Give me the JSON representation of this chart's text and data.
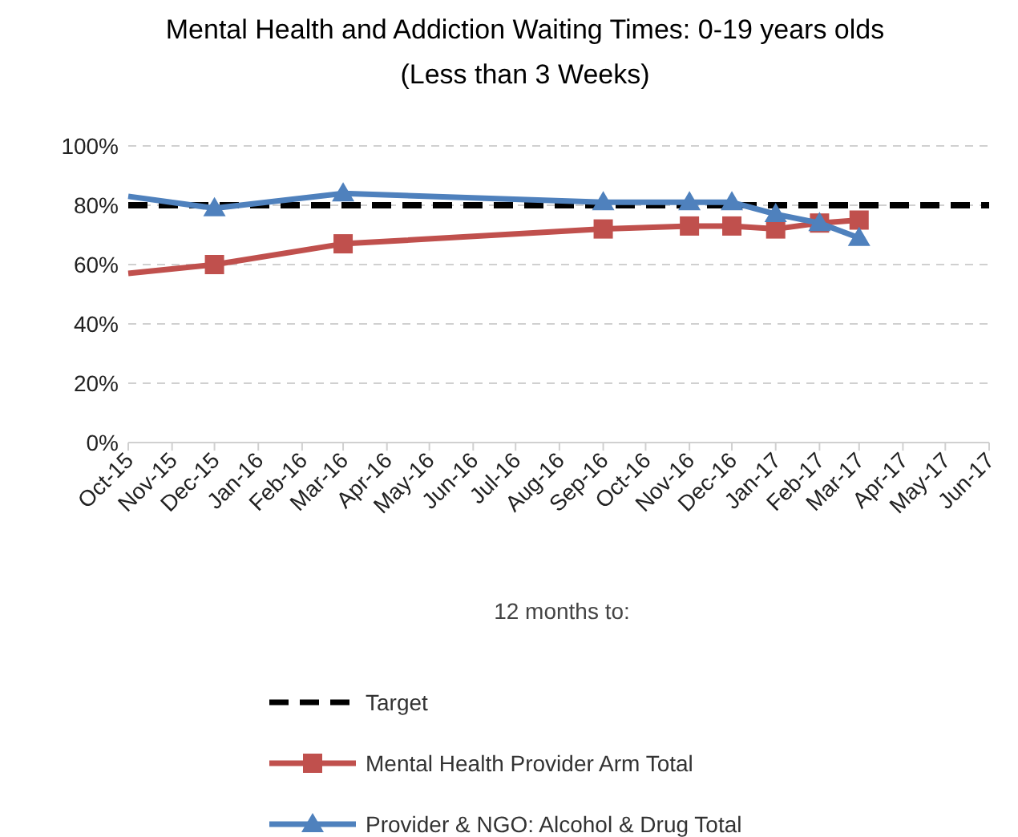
{
  "chart_data": {
    "type": "line",
    "title": "Mental Health and Addiction Waiting Times: 0-19 years olds\n(Less than 3 Weeks)",
    "xlabel": "12 months to:",
    "xlim": [
      "2015-10",
      "2017-06"
    ],
    "xticks": [
      {
        "value": "2015-10",
        "label": "Oct-15"
      },
      {
        "value": "2015-11",
        "label": "Nov-15"
      },
      {
        "value": "2015-12",
        "label": "Dec-15"
      },
      {
        "value": "2016-01",
        "label": "Jan-16"
      },
      {
        "value": "2016-02",
        "label": "Feb-16"
      },
      {
        "value": "2016-03",
        "label": "Mar-16"
      },
      {
        "value": "2016-04",
        "label": "Apr-16"
      },
      {
        "value": "2016-05",
        "label": "May-16"
      },
      {
        "value": "2016-06",
        "label": "Jun-16"
      },
      {
        "value": "2016-07",
        "label": "Jul-16"
      },
      {
        "value": "2016-08",
        "label": "Aug-16"
      },
      {
        "value": "2016-09",
        "label": "Sep-16"
      },
      {
        "value": "2016-10",
        "label": "Oct-16"
      },
      {
        "value": "2016-11",
        "label": "Nov-16"
      },
      {
        "value": "2016-12",
        "label": "Dec-16"
      },
      {
        "value": "2017-01",
        "label": "Jan-17"
      },
      {
        "value": "2017-02",
        "label": "Feb-17"
      },
      {
        "value": "2017-03",
        "label": "Mar-17"
      },
      {
        "value": "2017-04",
        "label": "Apr-17"
      },
      {
        "value": "2017-05",
        "label": "May-17"
      },
      {
        "value": "2017-06",
        "label": "Jun-17"
      }
    ],
    "ylim": [
      0,
      100
    ],
    "yticks": [
      {
        "value": 0,
        "label": "0%"
      },
      {
        "value": 20,
        "label": "20%"
      },
      {
        "value": 40,
        "label": "40%"
      },
      {
        "value": 60,
        "label": "60%"
      },
      {
        "value": 80,
        "label": "80%"
      },
      {
        "value": 100,
        "label": "100%"
      }
    ],
    "grid": "y",
    "legend": "bottom",
    "series": [
      {
        "name": "Target",
        "color": "#000000",
        "line_style": "dashed",
        "marker": "none",
        "x": [
          "2015-10",
          "2017-06"
        ],
        "values": [
          80,
          80
        ]
      },
      {
        "name": "Mental Health Provider Arm Total",
        "color": "#c0504d",
        "line_style": "solid",
        "marker": "square",
        "x": [
          "2015-10",
          "2015-12",
          "2016-03",
          "2016-09",
          "2016-11",
          "2016-12",
          "2017-01",
          "2017-02",
          "2017-03"
        ],
        "values": [
          57,
          60,
          67,
          72,
          73,
          73,
          72,
          74,
          75
        ]
      },
      {
        "name": "Provider & NGO: Alcohol & Drug Total",
        "color": "#4f81bd",
        "line_style": "solid",
        "marker": "triangle",
        "x": [
          "2015-10",
          "2015-12",
          "2016-03",
          "2016-09",
          "2016-11",
          "2016-12",
          "2017-01",
          "2017-02",
          "2017-03"
        ],
        "values": [
          83,
          79,
          84,
          81,
          81,
          81,
          77,
          74,
          69
        ]
      }
    ]
  }
}
